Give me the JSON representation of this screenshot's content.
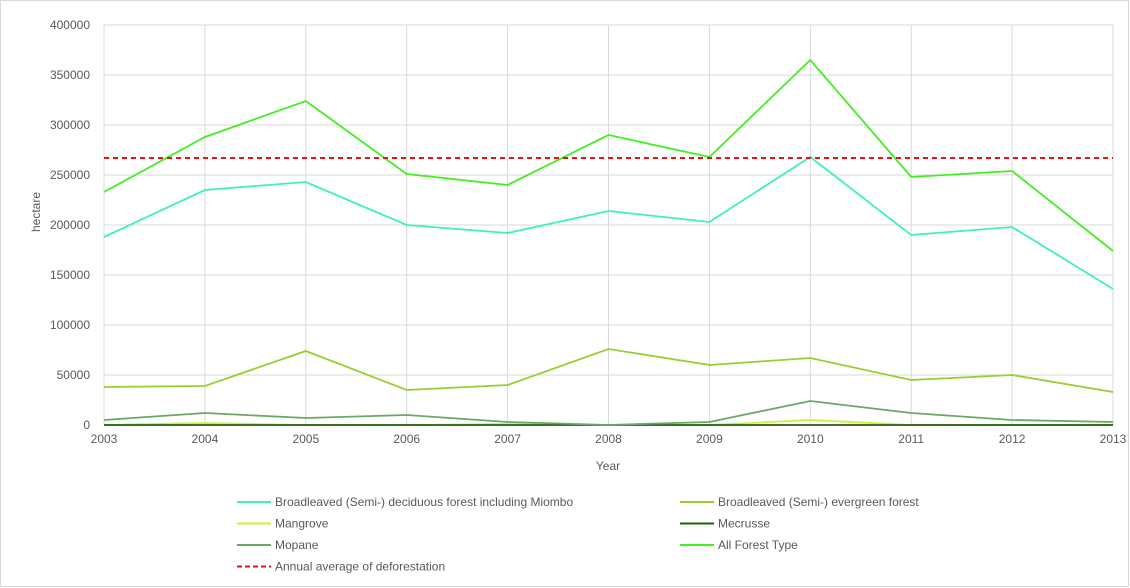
{
  "chart_data": {
    "type": "line",
    "xlabel": "Year",
    "ylabel": "hectare",
    "x": [
      2003,
      2004,
      2005,
      2006,
      2007,
      2008,
      2009,
      2010,
      2011,
      2012,
      2013
    ],
    "xlim": [
      2003,
      2013
    ],
    "ylim": [
      0,
      400000
    ],
    "yticks": [
      0,
      50000,
      100000,
      150000,
      200000,
      250000,
      300000,
      350000,
      400000
    ],
    "grid": true,
    "legend_position": "bottom",
    "series": [
      {
        "name": "Broadleaved (Semi-) deciduous forest including Miombo",
        "color": "#3cf0c0",
        "dash": false,
        "values": [
          188000,
          235000,
          243000,
          200000,
          192000,
          214000,
          203000,
          268000,
          190000,
          198000,
          136000
        ]
      },
      {
        "name": "Broadleaved (Semi-) evergreen forest",
        "color": "#9acd32",
        "dash": false,
        "values": [
          38000,
          39000,
          74000,
          35000,
          40000,
          76000,
          60000,
          67000,
          45000,
          50000,
          33000
        ]
      },
      {
        "name": "Mangrove",
        "color": "#d4ed3c",
        "dash": false,
        "values": [
          0,
          2000,
          0,
          0,
          1000,
          0,
          0,
          5000,
          0,
          0,
          0
        ]
      },
      {
        "name": "Mecrusse",
        "color": "#1f5f0f",
        "dash": false,
        "values": [
          0,
          0,
          0,
          0,
          0,
          0,
          0,
          0,
          0,
          0,
          0
        ]
      },
      {
        "name": "Mopane",
        "color": "#6aa86a",
        "dash": false,
        "values": [
          5000,
          12000,
          7000,
          10000,
          3000,
          0,
          3000,
          24000,
          12000,
          5000,
          3000
        ]
      },
      {
        "name": "All Forest Type",
        "color": "#44ee22",
        "dash": false,
        "values": [
          233000,
          288000,
          324000,
          251000,
          240000,
          290000,
          268000,
          365000,
          248000,
          254000,
          174000
        ]
      },
      {
        "name": "Annual average of deforestation",
        "color": "#ee1111",
        "dash": true,
        "values": [
          267000,
          267000,
          267000,
          267000,
          267000,
          267000,
          267000,
          267000,
          267000,
          267000,
          267000
        ]
      }
    ]
  }
}
